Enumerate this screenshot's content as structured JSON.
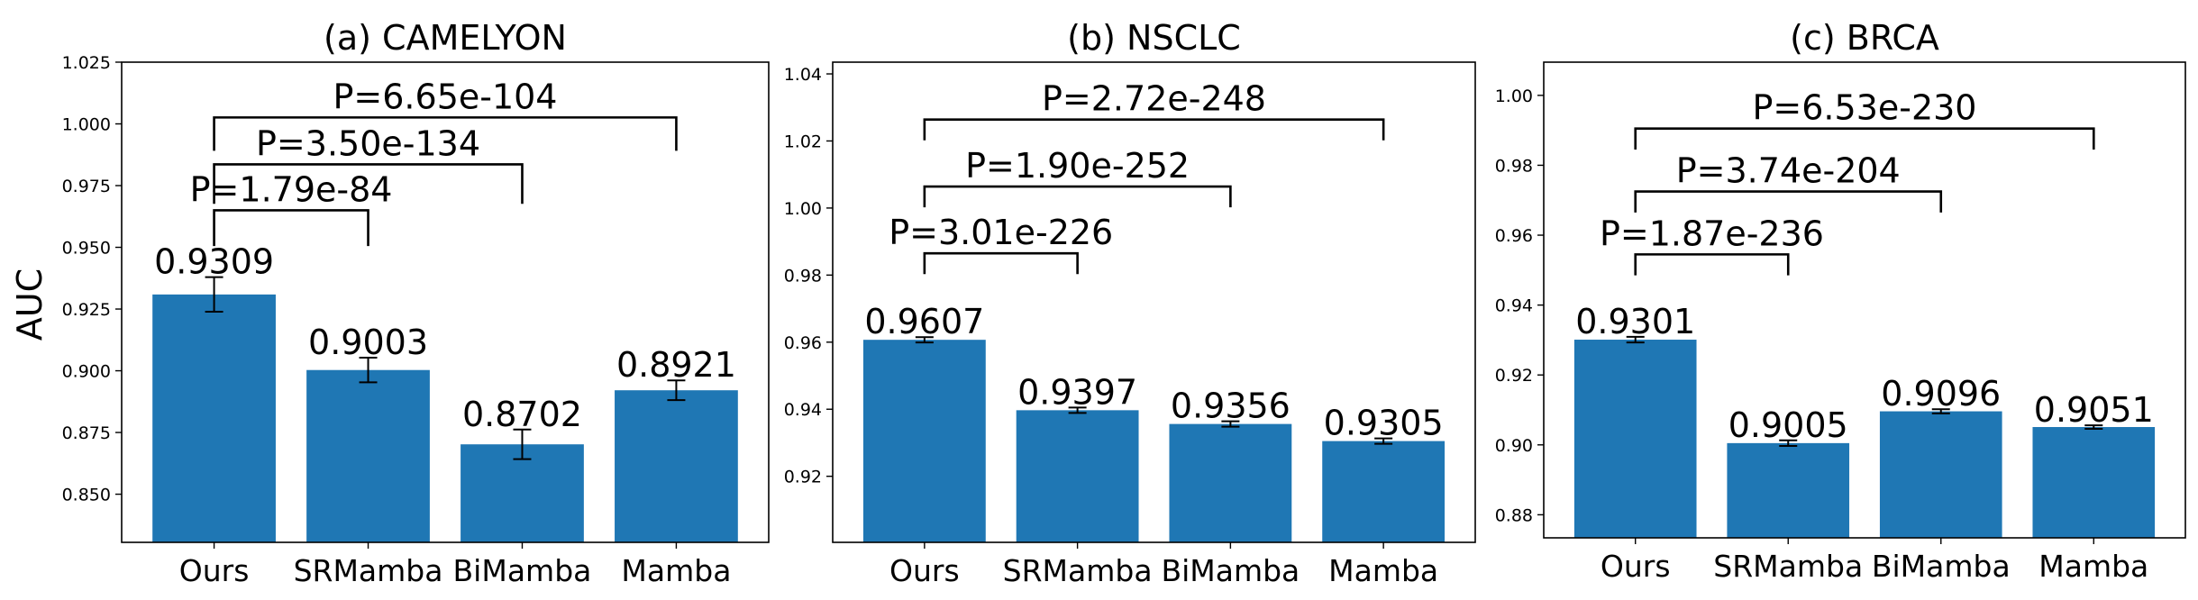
{
  "figure": {
    "ylabel": "AUC",
    "bar_color": "#1f77b4"
  },
  "chart_data": [
    {
      "type": "bar",
      "title": "(a) CAMELYON",
      "categories": [
        "Ours",
        "SRMamba",
        "BiMamba",
        "Mamba"
      ],
      "values": [
        0.9309,
        0.9003,
        0.8702,
        0.8921
      ],
      "value_labels": [
        "0.9309",
        "0.9003",
        "0.8702",
        "0.8921"
      ],
      "errors": [
        0.007,
        0.005,
        0.006,
        0.004
      ],
      "ylim": [
        0.8305,
        1.025
      ],
      "yticks": [
        0.85,
        0.875,
        0.9,
        0.925,
        0.95,
        0.975,
        1.0,
        1.025
      ],
      "ytick_labels": [
        "0.850",
        "0.875",
        "0.900",
        "0.925",
        "0.950",
        "0.975",
        "1.000",
        "1.025"
      ],
      "ylabel": "AUC",
      "comparisons": [
        {
          "from": "Ours",
          "to": "SRMamba",
          "label": "P=1.79e-84",
          "y": 0.965,
          "drop": 0.0145
        },
        {
          "from": "Ours",
          "to": "BiMamba",
          "label": "P=3.50e-134",
          "y": 0.9836,
          "drop": 0.016
        },
        {
          "from": "Ours",
          "to": "Mamba",
          "label": "P=6.65e-104",
          "y": 1.0026,
          "drop": 0.0135
        }
      ]
    },
    {
      "type": "bar",
      "title": "(b) NSCLC",
      "categories": [
        "Ours",
        "SRMamba",
        "BiMamba",
        "Mamba"
      ],
      "values": [
        0.9607,
        0.9397,
        0.9356,
        0.9305
      ],
      "value_labels": [
        "0.9607",
        "0.9397",
        "0.9356",
        "0.9305"
      ],
      "errors": [
        0.0008,
        0.0008,
        0.0008,
        0.0008
      ],
      "ylim": [
        0.9003,
        1.0435
      ],
      "yticks": [
        0.92,
        0.94,
        0.96,
        0.98,
        1.0,
        1.02,
        1.04
      ],
      "ytick_labels": [
        "0.92",
        "0.94",
        "0.96",
        "0.98",
        "1.00",
        "1.02",
        "1.04"
      ],
      "ylabel": "",
      "comparisons": [
        {
          "from": "Ours",
          "to": "SRMamba",
          "label": "P=3.01e-226",
          "y": 0.9865,
          "drop": 0.0062
        },
        {
          "from": "Ours",
          "to": "BiMamba",
          "label": "P=1.90e-252",
          "y": 1.0064,
          "drop": 0.0062
        },
        {
          "from": "Ours",
          "to": "Mamba",
          "label": "P=2.72e-248",
          "y": 1.0264,
          "drop": 0.0062
        }
      ]
    },
    {
      "type": "bar",
      "title": "(c) BRCA",
      "categories": [
        "Ours",
        "SRMamba",
        "BiMamba",
        "Mamba"
      ],
      "values": [
        0.9301,
        0.9005,
        0.9096,
        0.9051
      ],
      "value_labels": [
        "0.9301",
        "0.9005",
        "0.9096",
        "0.9051"
      ],
      "errors": [
        0.0008,
        0.0008,
        0.0006,
        0.0005
      ],
      "ylim": [
        0.8734,
        1.0095
      ],
      "yticks": [
        0.88,
        0.9,
        0.92,
        0.94,
        0.96,
        0.98,
        1.0
      ],
      "ytick_labels": [
        "0.88",
        "0.90",
        "0.92",
        "0.94",
        "0.96",
        "0.98",
        "1.00"
      ],
      "ylabel": "",
      "comparisons": [
        {
          "from": "Ours",
          "to": "SRMamba",
          "label": "P=1.87e-236",
          "y": 0.9545,
          "drop": 0.006
        },
        {
          "from": "Ours",
          "to": "BiMamba",
          "label": "P=3.74e-204",
          "y": 0.9725,
          "drop": 0.006
        },
        {
          "from": "Ours",
          "to": "Mamba",
          "label": "P=6.53e-230",
          "y": 0.9905,
          "drop": 0.006
        }
      ]
    }
  ]
}
